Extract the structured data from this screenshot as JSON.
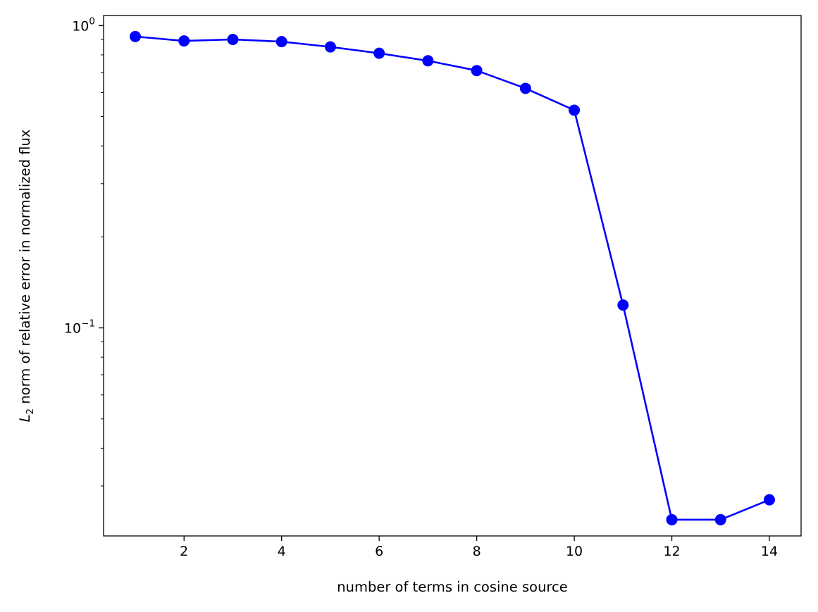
{
  "chart_data": {
    "type": "line",
    "title": "",
    "xlabel": "number of terms in cosine source",
    "ylabel": {
      "symbol": "L",
      "subscript": "2",
      "text": " norm of relative error in normalized flux"
    },
    "yscale": "log",
    "xlim": [
      0.35,
      14.65
    ],
    "ylim": [
      0.0205,
      1.08
    ],
    "grid": false,
    "legend": "none",
    "x_ticks": [
      {
        "value": 2,
        "label": "2"
      },
      {
        "value": 4,
        "label": "4"
      },
      {
        "value": 6,
        "label": "6"
      },
      {
        "value": 8,
        "label": "8"
      },
      {
        "value": 10,
        "label": "10"
      },
      {
        "value": 12,
        "label": "12"
      },
      {
        "value": 14,
        "label": "14"
      }
    ],
    "y_ticks_major": [
      {
        "value": 1,
        "base": "10",
        "exp": "0"
      },
      {
        "value": 0.1,
        "base": "10",
        "exp": "−1"
      }
    ],
    "y_ticks_minor": [
      0.03,
      0.04,
      0.05,
      0.06,
      0.07,
      0.08,
      0.09,
      0.2,
      0.3,
      0.4,
      0.5,
      0.6,
      0.7,
      0.8,
      0.9
    ],
    "series": [
      {
        "color": "#0000ff",
        "marker": "circle",
        "x": [
          1,
          2,
          3,
          4,
          5,
          6,
          7,
          8,
          9,
          10,
          11,
          12,
          13,
          14
        ],
        "y": [
          0.92,
          0.89,
          0.9,
          0.885,
          0.85,
          0.81,
          0.765,
          0.71,
          0.62,
          0.525,
          0.119,
          0.0232,
          0.0232,
          0.027
        ]
      }
    ]
  }
}
